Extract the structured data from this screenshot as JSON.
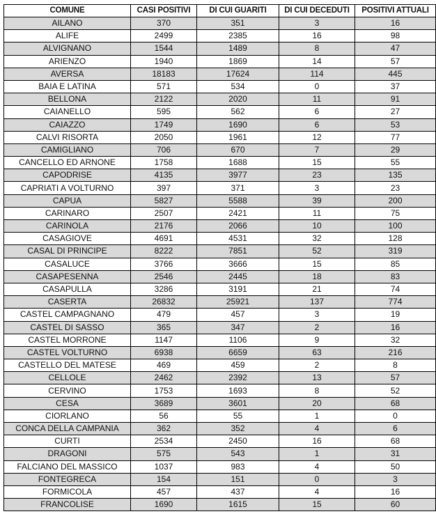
{
  "table": {
    "headers": [
      "COMUNE",
      "CASI POSITIVI",
      "DI CUI GUARITI",
      "DI CUI DECEDUTI",
      "POSITIVI ATTUALI"
    ],
    "rows": [
      [
        "AILANO",
        "370",
        "351",
        "3",
        "16"
      ],
      [
        "ALIFE",
        "2499",
        "2385",
        "16",
        "98"
      ],
      [
        "ALVIGNANO",
        "1544",
        "1489",
        "8",
        "47"
      ],
      [
        "ARIENZO",
        "1940",
        "1869",
        "14",
        "57"
      ],
      [
        "AVERSA",
        "18183",
        "17624",
        "114",
        "445"
      ],
      [
        "BAIA E LATINA",
        "571",
        "534",
        "0",
        "37"
      ],
      [
        "BELLONA",
        "2122",
        "2020",
        "11",
        "91"
      ],
      [
        "CAIANELLO",
        "595",
        "562",
        "6",
        "27"
      ],
      [
        "CAIAZZO",
        "1749",
        "1690",
        "6",
        "53"
      ],
      [
        "CALVI RISORTA",
        "2050",
        "1961",
        "12",
        "77"
      ],
      [
        "CAMIGLIANO",
        "706",
        "670",
        "7",
        "29"
      ],
      [
        "CANCELLO ED ARNONE",
        "1758",
        "1688",
        "15",
        "55"
      ],
      [
        "CAPODRISE",
        "4135",
        "3977",
        "23",
        "135"
      ],
      [
        "CAPRIATI A VOLTURNO",
        "397",
        "371",
        "3",
        "23"
      ],
      [
        "CAPUA",
        "5827",
        "5588",
        "39",
        "200"
      ],
      [
        "CARINARO",
        "2507",
        "2421",
        "11",
        "75"
      ],
      [
        "CARINOLA",
        "2176",
        "2066",
        "10",
        "100"
      ],
      [
        "CASAGIOVE",
        "4691",
        "4531",
        "32",
        "128"
      ],
      [
        "CASAL DI PRINCIPE",
        "8222",
        "7851",
        "52",
        "319"
      ],
      [
        "CASALUCE",
        "3766",
        "3666",
        "15",
        "85"
      ],
      [
        "CASAPESENNA",
        "2546",
        "2445",
        "18",
        "83"
      ],
      [
        "CASAPULLA",
        "3286",
        "3191",
        "21",
        "74"
      ],
      [
        "CASERTA",
        "26832",
        "25921",
        "137",
        "774"
      ],
      [
        "CASTEL CAMPAGNANO",
        "479",
        "457",
        "3",
        "19"
      ],
      [
        "CASTEL DI SASSO",
        "365",
        "347",
        "2",
        "16"
      ],
      [
        "CASTEL MORRONE",
        "1147",
        "1106",
        "9",
        "32"
      ],
      [
        "CASTEL VOLTURNO",
        "6938",
        "6659",
        "63",
        "216"
      ],
      [
        "CASTELLO DEL MATESE",
        "469",
        "459",
        "2",
        "8"
      ],
      [
        "CELLOLE",
        "2462",
        "2392",
        "13",
        "57"
      ],
      [
        "CERVINO",
        "1753",
        "1693",
        "8",
        "52"
      ],
      [
        "CESA",
        "3689",
        "3601",
        "20",
        "68"
      ],
      [
        "CIORLANO",
        "56",
        "55",
        "1",
        "0"
      ],
      [
        "CONCA DELLA CAMPANIA",
        "362",
        "352",
        "4",
        "6"
      ],
      [
        "CURTI",
        "2534",
        "2450",
        "16",
        "68"
      ],
      [
        "DRAGONI",
        "575",
        "543",
        "1",
        "31"
      ],
      [
        "FALCIANO DEL MASSICO",
        "1037",
        "983",
        "4",
        "50"
      ],
      [
        "FONTEGRECA",
        "154",
        "151",
        "0",
        "3"
      ],
      [
        "FORMICOLA",
        "457",
        "437",
        "4",
        "16"
      ],
      [
        "FRANCOLISE",
        "1690",
        "1615",
        "15",
        "60"
      ]
    ]
  },
  "colors": {
    "stripe": "#d9d9d9",
    "border": "#000000"
  }
}
